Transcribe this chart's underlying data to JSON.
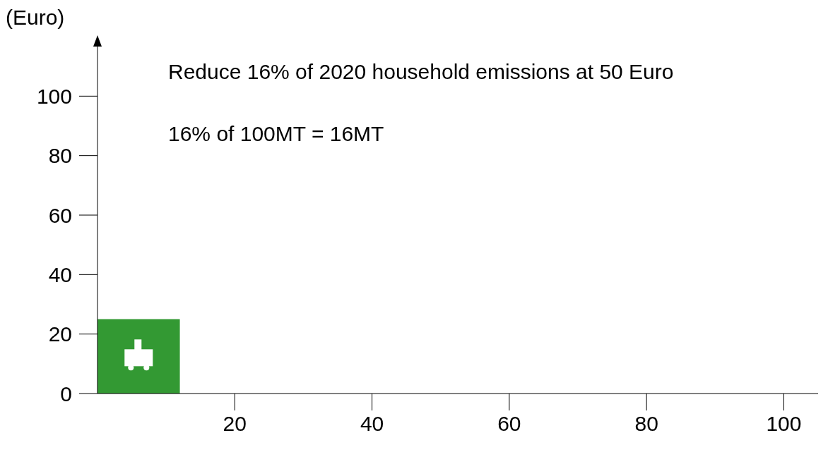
{
  "chart_data": {
    "type": "area",
    "ylabel": "(Euro)",
    "annotations": [
      "Reduce 16% of 2020 household emissions at 50 Euro",
      "16% of 100MT = 16MT"
    ],
    "x": [
      0,
      12
    ],
    "series": [
      {
        "color": "#339933",
        "values": [
          25,
          25
        ]
      }
    ],
    "xlim": [
      0,
      105
    ],
    "xticks": [
      20,
      40,
      60,
      80,
      100
    ],
    "ylim": [
      0,
      120
    ],
    "yticks": [
      0,
      20,
      40,
      60,
      80,
      100
    ],
    "grid": false,
    "legend": false
  }
}
